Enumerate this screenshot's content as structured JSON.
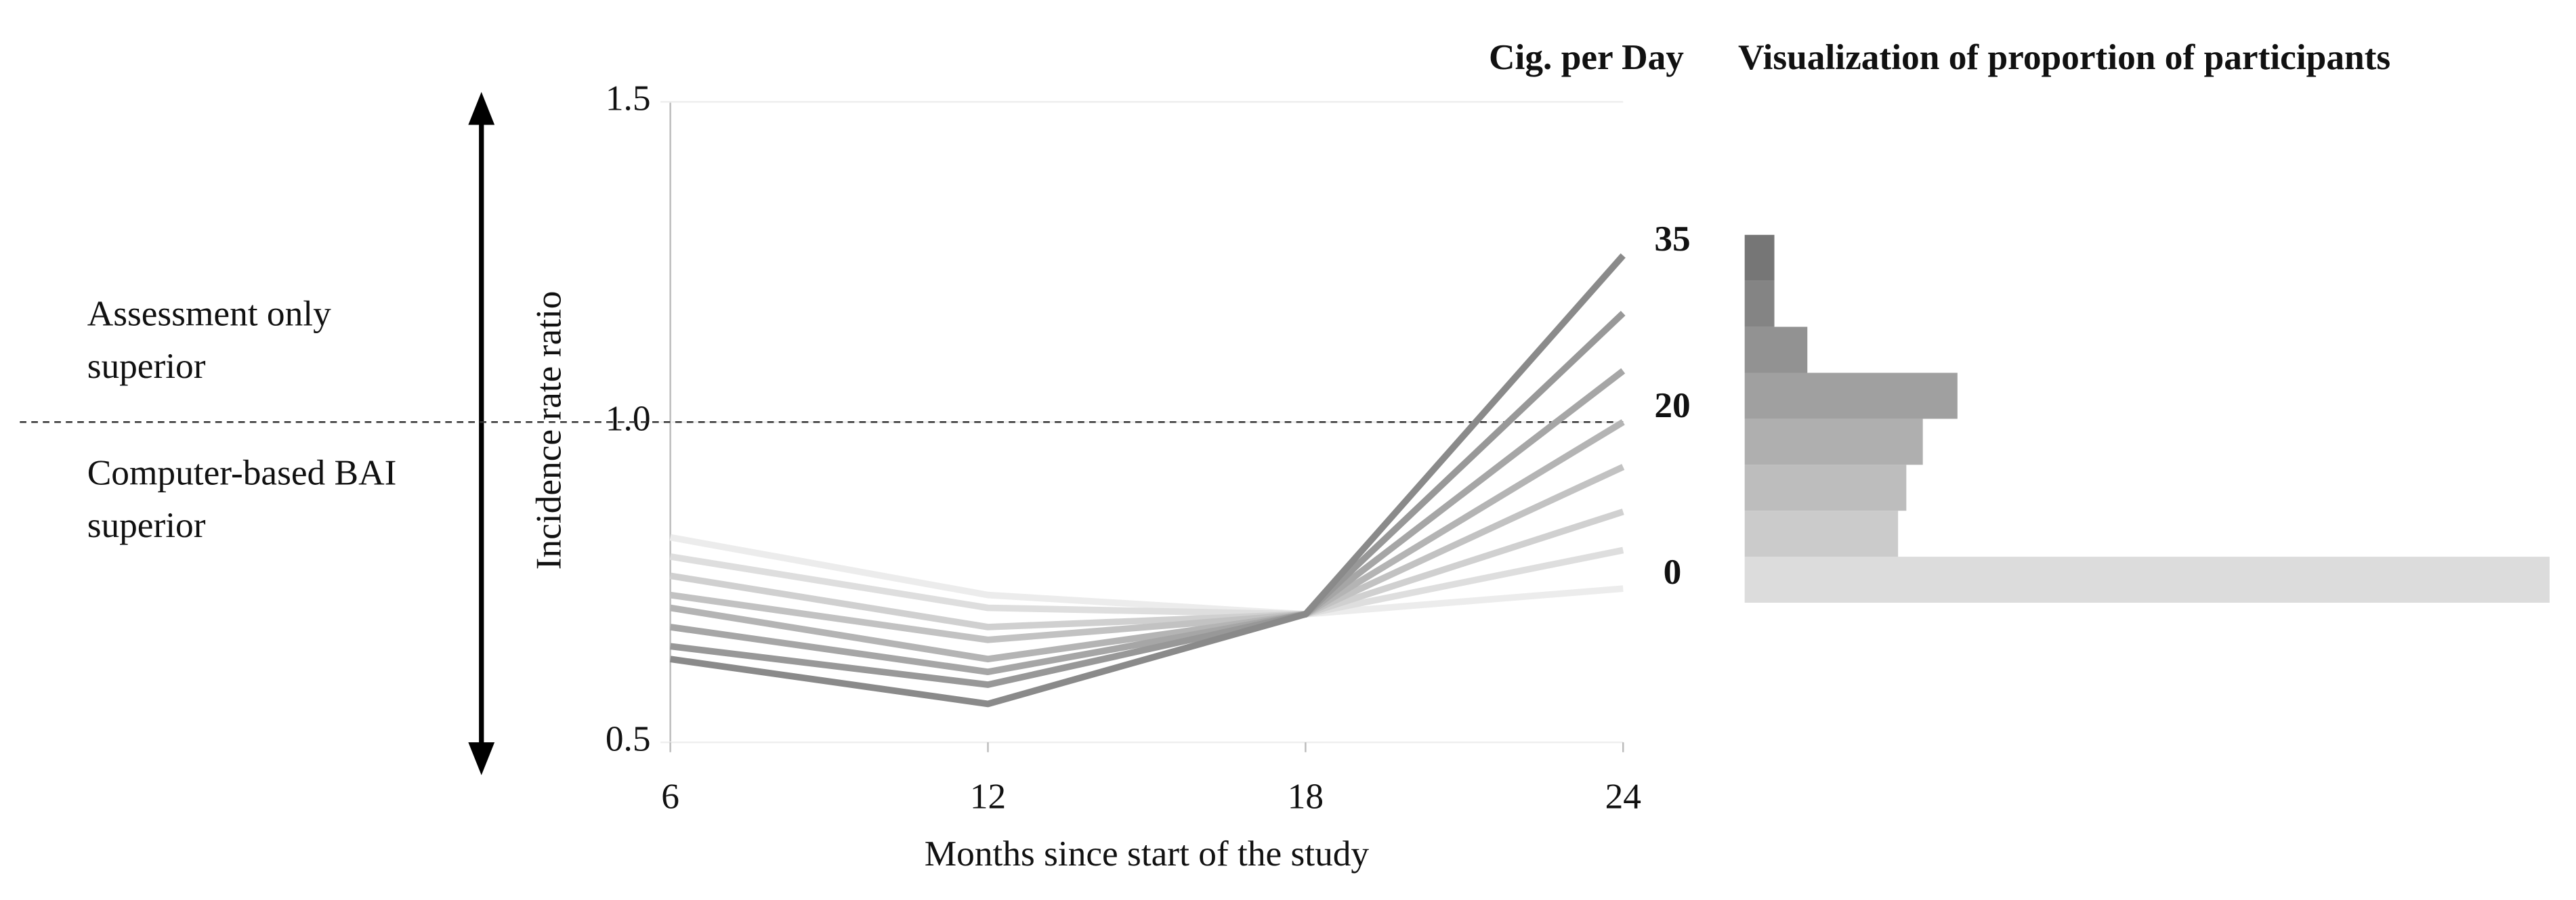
{
  "chart_data": [
    {
      "type": "line",
      "y_label": "Incidence   rate ratio",
      "x_label": "Months since start of the study",
      "legend_title": "Cig. per Day",
      "annotations": [
        [
          "Assessment only",
          "superior"
        ],
        [
          "Computer-based BAI",
          "superior"
        ]
      ],
      "x": [
        6,
        12,
        18,
        24
      ],
      "xlim": [
        6,
        24
      ],
      "xticks": [
        6,
        12,
        18,
        24
      ],
      "ylim": [
        0.5,
        1.5
      ],
      "yticks": [
        {
          "value": 0.5,
          "label": "0.5"
        },
        {
          "value": 1.0,
          "label": "1.0"
        },
        {
          "value": 1.5,
          "label": "1.5"
        }
      ],
      "reference_line": 1.0,
      "series": [
        {
          "name": "0",
          "color": "#ececec",
          "values": [
            0.82,
            0.73,
            0.7,
            0.74
          ]
        },
        {
          "color": "#dedede",
          "values": [
            0.79,
            0.71,
            0.7,
            0.8
          ]
        },
        {
          "color": "#d0d0d0",
          "values": [
            0.76,
            0.68,
            0.7,
            0.86
          ]
        },
        {
          "color": "#c2c2c2",
          "values": [
            0.73,
            0.66,
            0.7,
            0.93
          ]
        },
        {
          "name": "20",
          "color": "#b4b4b4",
          "values": [
            0.71,
            0.63,
            0.7,
            1.0
          ]
        },
        {
          "color": "#a6a6a6",
          "values": [
            0.68,
            0.61,
            0.7,
            1.08
          ]
        },
        {
          "color": "#989898",
          "values": [
            0.65,
            0.59,
            0.7,
            1.17
          ]
        },
        {
          "name": "35",
          "color": "#8a8a8a",
          "values": [
            0.63,
            0.56,
            0.7,
            1.26
          ]
        }
      ]
    },
    {
      "type": "hbar",
      "title": "Visualization of proportion of participants",
      "values": [
        488,
        93,
        98,
        108,
        129,
        38,
        18,
        18
      ],
      "colors": [
        "#dcdcdc",
        "#cbcbcb",
        "#bdbdbd",
        "#afafaf",
        "#a0a0a0",
        "#929292",
        "#848484",
        "#767676"
      ]
    }
  ]
}
